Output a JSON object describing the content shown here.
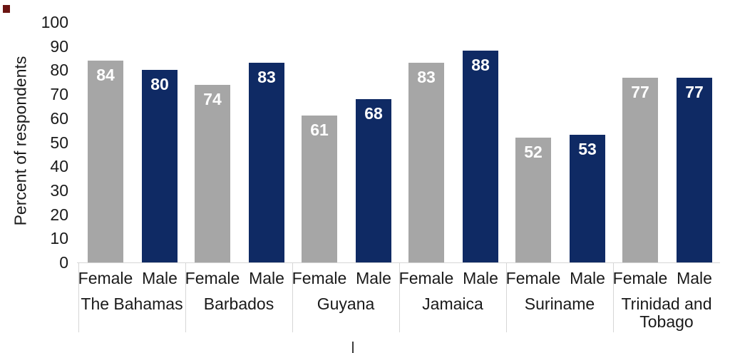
{
  "chart_data": {
    "type": "bar",
    "title": "",
    "ylabel": "Percent of respondents",
    "xlabel": "",
    "ylim": [
      0,
      100
    ],
    "yticks": [
      0,
      10,
      20,
      30,
      40,
      50,
      60,
      70,
      80,
      90,
      100
    ],
    "categories": [
      "The Bahamas",
      "Barbados",
      "Guyana",
      "Jamaica",
      "Suriname",
      "Trinidad and Tobago"
    ],
    "sub_axis_labels": [
      "Female",
      "Male"
    ],
    "series": [
      {
        "name": "Female",
        "color": "#a6a6a6",
        "values": [
          84,
          74,
          61,
          83,
          52,
          77
        ]
      },
      {
        "name": "Male",
        "color": "#0f2a64",
        "values": [
          80,
          83,
          68,
          88,
          53,
          77
        ]
      }
    ],
    "bar_value_labels_shown": true,
    "bar_value_label_color": "#ffffff",
    "legend_position": "none",
    "grid": false
  },
  "decorations": {
    "corner_mark_color": "#6b1412",
    "axis_line_color": "#d6d6d6",
    "text_color": "#1a1a1a"
  }
}
